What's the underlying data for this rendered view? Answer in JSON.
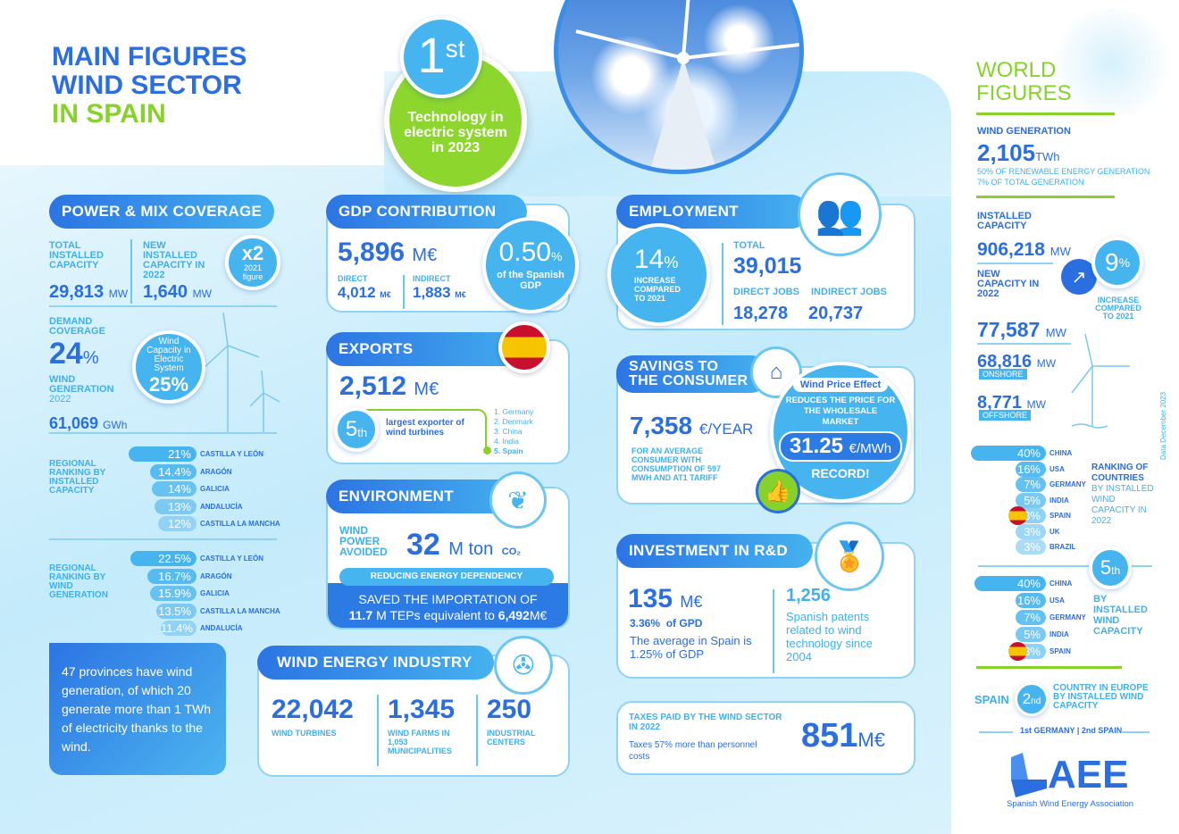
{
  "title": {
    "line1": "MAIN FIGURES",
    "line2": "WIND SECTOR",
    "line3": "IN SPAIN"
  },
  "badge": {
    "rank": "1",
    "suffix": "st",
    "text": "Technology in electric system in 2023"
  },
  "colors": {
    "dark_blue": "#2a6ee0",
    "light_blue": "#46b4ef",
    "green": "#86d22b"
  },
  "power": {
    "header": "POWER & MIX COVERAGE",
    "total_label": "TOTAL INSTALLED CAPACITY",
    "total_value": "29,813",
    "total_unit": "MW",
    "new_label": "NEW INSTALLED CAPACITY IN 2022",
    "new_value": "1,640",
    "new_unit": "MW",
    "x2": "x2",
    "x2_sub": "2021 figure",
    "demand_label": "DEMAND COVERAGE",
    "demand_value": "24",
    "demand_unit": "%",
    "gen_label": "WIND GENERATION",
    "gen_year": "2022",
    "gen_value": "61,069",
    "gen_unit": "GWh",
    "cap_circle_text": "Wind Capacity in Electric System",
    "cap_circle_value": "25%"
  },
  "regional_capacity": {
    "label": "REGIONAL RANKING BY INSTALLED CAPACITY",
    "items": [
      {
        "value": "21%",
        "region": "CASTILLA Y LEÓN",
        "pct": 21
      },
      {
        "value": "14.4%",
        "region": "ARAGÓN",
        "pct": 14.4
      },
      {
        "value": "14%",
        "region": "GALICIA",
        "pct": 14
      },
      {
        "value": "13%",
        "region": "ANDALUCÍA",
        "pct": 13
      },
      {
        "value": "12%",
        "region": "CASTILLA LA MANCHA",
        "pct": 12
      }
    ]
  },
  "regional_generation": {
    "label": "REGIONAL RANKING BY WIND GENERATION",
    "items": [
      {
        "value": "22.5%",
        "region": "CASTILLA Y LEÓN",
        "pct": 22.5
      },
      {
        "value": "16.7%",
        "region": "ARAGÓN",
        "pct": 16.7
      },
      {
        "value": "15.9%",
        "region": "GALICIA",
        "pct": 15.9
      },
      {
        "value": "13.5%",
        "region": "CASTILLA LA MANCHA",
        "pct": 13.5
      },
      {
        "value": "11.4%",
        "region": "ANDALUCÍA",
        "pct": 11.4
      }
    ]
  },
  "provinces_text": "47 provinces have wind generation, of which 20 generate more than 1 TWh of electricity thanks to the wind.",
  "gdp": {
    "header": "GDP CONTRIBUTION",
    "value": "5,896",
    "unit": "M€",
    "direct_label": "DIRECT",
    "direct_value": "4,012",
    "indirect_label": "INDIRECT",
    "indirect_value": "1,883",
    "sub_unit": "M€",
    "pct": "0.50",
    "pct_unit": "%",
    "pct_text": "of the Spanish GDP"
  },
  "exports": {
    "header": "EXPORTS",
    "value": "2,512",
    "unit": "M€",
    "rank": "5",
    "rank_suffix": "th",
    "rank_text": "largest exporter of wind turbines",
    "list": [
      "1. Germany",
      "2. Denmark",
      "3. China",
      "4. India",
      "5. Spain"
    ]
  },
  "environment": {
    "header": "ENVIRONMENT",
    "label": "WIND POWER AVOIDED",
    "value": "32",
    "unit": "M ton",
    "co2": "CO₂",
    "pill": "REDUCING ENERGY DEPENDENCY",
    "saved_line1": "SAVED THE IMPORTATION OF",
    "saved_num": "11.7",
    "saved_mid": " M TEPs equivalent to ",
    "saved_value": "6,492",
    "saved_unit": "M€"
  },
  "industry": {
    "header": "WIND ENERGY INDUSTRY",
    "turbines": "22,042",
    "turbines_label": "WIND TURBINES",
    "farms": "1,345",
    "farms_label": "WIND FARMS IN 1,053 MUNICIPALITIES",
    "centers": "250",
    "centers_label": "INDUSTRIAL CENTERS"
  },
  "employment": {
    "header": "EMPLOYMENT",
    "pct": "14",
    "pct_unit": "%",
    "pct_text": "INCREASE COMPARED TO 2021",
    "total_label": "TOTAL",
    "total": "39,015",
    "direct_label": "DIRECT JOBS",
    "direct": "18,278",
    "indirect_label": "INDIRECT JOBS",
    "indirect": "20,737"
  },
  "savings": {
    "header_line1": "SAVINGS TO",
    "header_line2": "THE CONSUMER",
    "value": "7,358",
    "unit": "€/YEAR",
    "note": "FOR AN AVERAGE CONSUMER WITH CONSUMPTION OF 597 MWH AND AT1 TARIFF",
    "effect_title": "Wind Price Effect",
    "effect_text": "REDUCES THE PRICE FOR THE WHOLESALE MARKET",
    "effect_value": "31.25",
    "effect_unit": "€/MWh",
    "record": "RECORD!"
  },
  "rd": {
    "header": "INVESTMENT IN R&D",
    "value": "135",
    "unit": "M€",
    "pct": "3.36%  of GPD",
    "avg": "The average in Spain is 1.25% of GDP",
    "patents": "1,256",
    "patents_text": "Spanish patents related to wind technology since 2004"
  },
  "taxes": {
    "label": "TAXES PAID BY THE WIND SECTOR IN 2022",
    "note": "Taxes 57% more than personnel costs",
    "value": "851",
    "unit": "M€"
  },
  "world": {
    "title1": "WORLD",
    "title2": "FIGURES",
    "gen_label": "WIND GENERATION",
    "gen_value": "2,105",
    "gen_unit": "TWh",
    "gen_note1": "50% OF RENEWABLE ENERGY GENERATION",
    "gen_note2": "7% OF TOTAL GENERATION",
    "cap_label": "INSTALLED CAPACITY",
    "cap_value": "906,218",
    "cap_unit": "MW",
    "new_label": "NEW CAPACITY IN 2022",
    "inc_value": "9",
    "inc_unit": "%",
    "inc_text": "INCREASE COMPARED TO 2021",
    "new_value": "77,587",
    "new_unit": "MW",
    "onshore_value": "68,816",
    "onshore_unit": "MW",
    "onshore_label": "ONSHORE",
    "offshore_value": "8,771",
    "offshore_unit": "MW",
    "offshore_label": "OFFSHORE",
    "date_note": "Data December 2023",
    "ranking1": {
      "label_a": "RANKING OF COUNTRIES",
      "label_b": "BY INSTALLED WIND CAPACITY IN 2022",
      "items": [
        {
          "value": "40%",
          "country": "CHINA",
          "pct": 40
        },
        {
          "value": "16%",
          "country": "USA",
          "pct": 16
        },
        {
          "value": "7%",
          "country": "GERMANY",
          "pct": 7
        },
        {
          "value": "5%",
          "country": "INDIA",
          "pct": 5
        },
        {
          "value": "3%",
          "country": "SPAIN",
          "pct": 3,
          "flag": true
        },
        {
          "value": "3%",
          "country": "UK",
          "pct": 3
        },
        {
          "value": "3%",
          "country": "BRAZIL",
          "pct": 3
        }
      ]
    },
    "rank5": "5",
    "rank5_suffix": "th",
    "ranking2": {
      "label": "BY INSTALLED WIND CAPACITY",
      "items": [
        {
          "value": "40%",
          "country": "CHINA",
          "pct": 40
        },
        {
          "value": "16%",
          "country": "USA",
          "pct": 16
        },
        {
          "value": "7%",
          "country": "GERMANY",
          "pct": 7
        },
        {
          "value": "5%",
          "country": "INDIA",
          "pct": 5
        },
        {
          "value": "3%",
          "country": "SPAIN",
          "pct": 3,
          "flag": true
        }
      ]
    },
    "europe_spain": "SPAIN",
    "europe_rank": "2",
    "europe_suffix": "nd",
    "europe_text": "COUNTRY IN EUROPE BY INSTALLED WIND CAPACITY",
    "europe_note": "1st GERMANY | 2nd SPAIN"
  },
  "logo": {
    "name": "AEE",
    "tagline": "Spanish Wind Energy Association"
  }
}
